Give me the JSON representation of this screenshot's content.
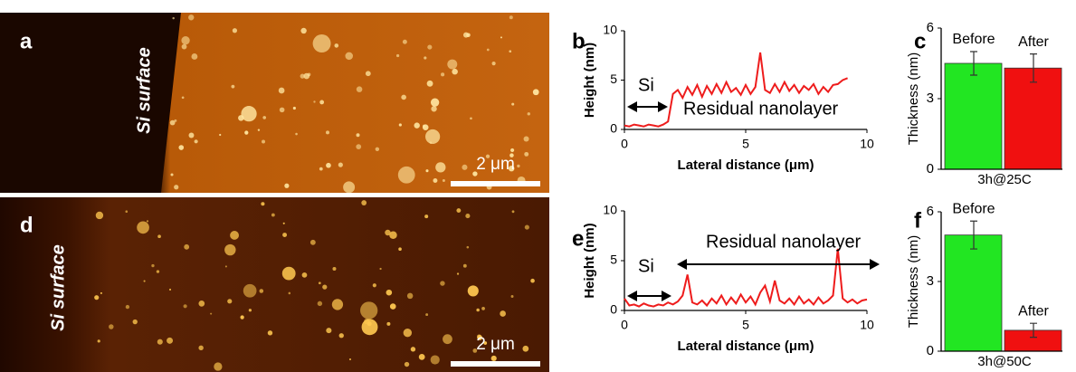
{
  "chart_data": [
    {
      "type": "image",
      "panel": "a",
      "annotation": "Si surface",
      "scale_bar": "2 μm"
    },
    {
      "type": "line",
      "panel": "b",
      "xlabel": "Lateral distance (μm)",
      "ylabel": "Height (nm)",
      "xlim": [
        0,
        10
      ],
      "ylim": [
        0,
        10
      ],
      "xticks": [
        0,
        5,
        10
      ],
      "yticks": [
        0,
        5,
        10
      ],
      "annotations": [
        "Si",
        "Residual nanolayer"
      ],
      "x": [
        0,
        0.2,
        0.4,
        0.6,
        0.8,
        1.0,
        1.2,
        1.4,
        1.6,
        1.8,
        2.0,
        2.2,
        2.4,
        2.6,
        2.8,
        3.0,
        3.2,
        3.4,
        3.6,
        3.8,
        4.0,
        4.2,
        4.4,
        4.6,
        4.8,
        5.0,
        5.2,
        5.4,
        5.6,
        5.8,
        6.0,
        6.2,
        6.4,
        6.6,
        6.8,
        7.0,
        7.2,
        7.4,
        7.6,
        7.8,
        8.0,
        8.2,
        8.4,
        8.6,
        8.8,
        9.0,
        9.2
      ],
      "series": [
        {
          "color": "#ee1c1c",
          "values": [
            0.4,
            0.3,
            0.5,
            0.4,
            0.3,
            0.5,
            0.4,
            0.3,
            0.5,
            0.8,
            3.6,
            4.0,
            3.2,
            4.3,
            3.5,
            4.5,
            3.3,
            4.4,
            3.6,
            4.6,
            3.7,
            4.8,
            3.8,
            4.2,
            3.5,
            4.5,
            3.6,
            4.3,
            7.8,
            4.0,
            3.7,
            4.6,
            3.8,
            4.8,
            3.9,
            4.5,
            3.7,
            4.4,
            4.0,
            4.6,
            3.6,
            4.3,
            3.8,
            4.5,
            4.6,
            5.0,
            5.2
          ]
        }
      ]
    },
    {
      "type": "bar",
      "panel": "c",
      "ylabel": "Thickness (nm)",
      "categories": [
        "3h@25C"
      ],
      "ylim": [
        0,
        6
      ],
      "yticks": [
        0,
        3,
        6
      ],
      "series": [
        {
          "name": "Before",
          "color": "#22e622",
          "values": [
            4.5
          ],
          "errors": [
            0.5
          ]
        },
        {
          "name": "After",
          "color": "#f01010",
          "values": [
            4.3
          ],
          "errors": [
            0.6
          ]
        }
      ]
    },
    {
      "type": "image",
      "panel": "d",
      "annotation": "Si surface",
      "scale_bar": "2 μm"
    },
    {
      "type": "line",
      "panel": "e",
      "xlabel": "Lateral distance (μm)",
      "ylabel": "Height (nm)",
      "xlim": [
        0,
        10
      ],
      "ylim": [
        0,
        10
      ],
      "xticks": [
        0,
        5,
        10
      ],
      "yticks": [
        0,
        5,
        10
      ],
      "annotations": [
        "Si",
        "Residual nanolayer"
      ],
      "x": [
        0,
        0.2,
        0.4,
        0.6,
        0.8,
        1.0,
        1.2,
        1.4,
        1.6,
        1.8,
        2.0,
        2.2,
        2.4,
        2.6,
        2.8,
        3.0,
        3.2,
        3.4,
        3.6,
        3.8,
        4.0,
        4.2,
        4.4,
        4.6,
        4.8,
        5.0,
        5.2,
        5.4,
        5.6,
        5.8,
        6.0,
        6.2,
        6.4,
        6.6,
        6.8,
        7.0,
        7.2,
        7.4,
        7.6,
        7.8,
        8.0,
        8.2,
        8.4,
        8.6,
        8.8,
        9.0,
        9.2,
        9.4,
        9.6,
        9.8,
        10.0
      ],
      "series": [
        {
          "color": "#ee1c1c",
          "values": [
            1.2,
            0.5,
            0.6,
            0.4,
            0.7,
            0.5,
            0.4,
            0.6,
            0.5,
            0.8,
            0.6,
            0.9,
            1.5,
            3.6,
            0.8,
            0.6,
            1.0,
            0.5,
            1.2,
            0.7,
            1.5,
            0.6,
            1.3,
            0.7,
            1.6,
            0.8,
            1.4,
            0.6,
            1.8,
            2.5,
            0.9,
            3.0,
            1.0,
            0.7,
            1.2,
            0.6,
            1.4,
            0.7,
            1.1,
            0.6,
            1.3,
            0.7,
            1.0,
            1.5,
            6.2,
            1.2,
            0.8,
            1.1,
            0.7,
            1.0,
            1.1
          ]
        }
      ]
    },
    {
      "type": "bar",
      "panel": "f",
      "ylabel": "Thickness (nm)",
      "categories": [
        "3h@50C"
      ],
      "ylim": [
        0,
        6
      ],
      "yticks": [
        0,
        3,
        6
      ],
      "series": [
        {
          "name": "Before",
          "color": "#22e622",
          "values": [
            5.0
          ],
          "errors": [
            0.6
          ]
        },
        {
          "name": "After",
          "color": "#f01010",
          "values": [
            0.9
          ],
          "errors": [
            0.3
          ]
        }
      ]
    }
  ]
}
